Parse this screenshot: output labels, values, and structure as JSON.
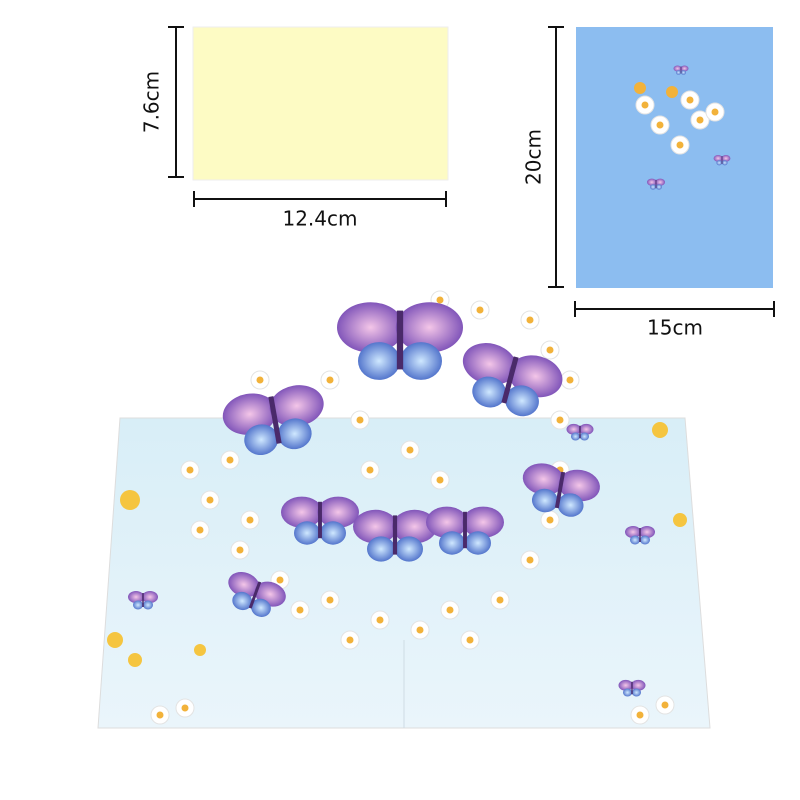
{
  "envelope": {
    "height_label": "7.6cm",
    "width_label": "12.4cm"
  },
  "card": {
    "height_label": "20cm",
    "width_label": "15cm"
  }
}
